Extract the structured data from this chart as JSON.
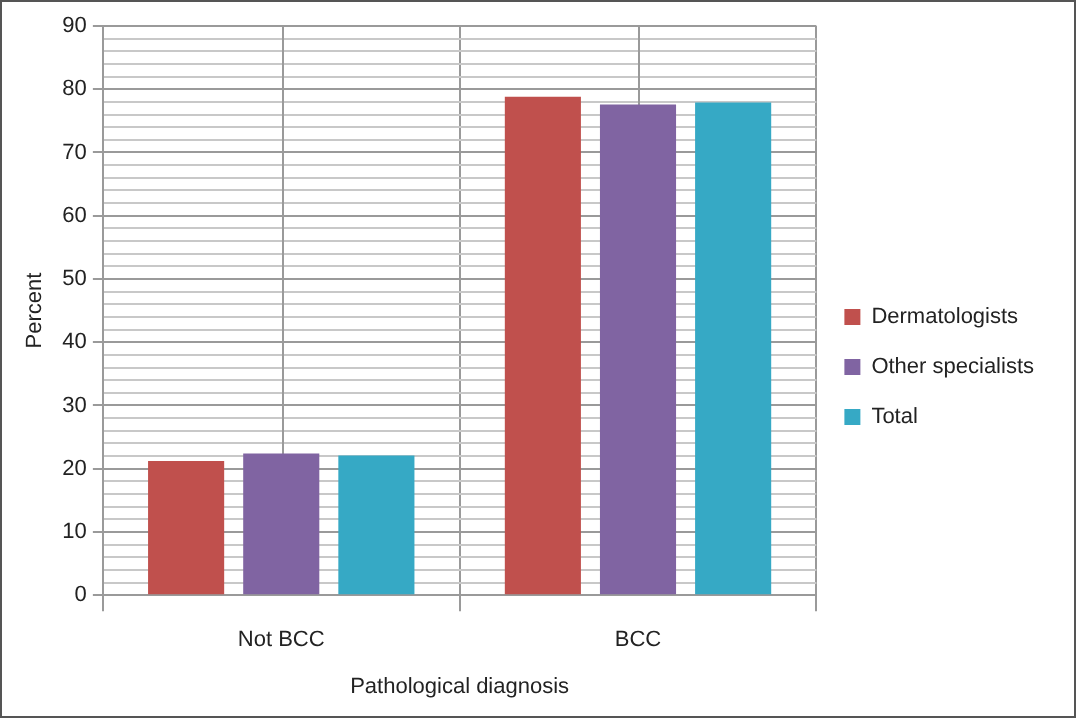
{
  "chart_data": {
    "type": "bar",
    "xlabel": "Pathological diagnosis",
    "ylabel": "Percent",
    "categories": [
      "Not BCC",
      "BCC"
    ],
    "series": [
      {
        "name": "Dermatologists",
        "color": "#c0504d",
        "values": [
          21.2,
          78.8
        ]
      },
      {
        "name": "Other specialists",
        "color": "#8064a2",
        "values": [
          22.4,
          77.6
        ]
      },
      {
        "name": "Total",
        "color": "#36a9c5",
        "values": [
          22.1,
          77.9
        ]
      }
    ],
    "ylim": [
      0,
      90
    ],
    "yticks": [
      0,
      {
        "value": 2,
        "label": null
      },
      {
        "value": 4,
        "label": null
      },
      {
        "value": 6,
        "label": null
      },
      {
        "value": 8,
        "label": null
      },
      10,
      {
        "value": 12,
        "label": null
      },
      {
        "value": 14,
        "label": null
      },
      {
        "value": 16,
        "label": null
      },
      {
        "value": 18,
        "label": null
      },
      20,
      {
        "value": 22,
        "label": null
      },
      {
        "value": 24,
        "label": null
      },
      {
        "value": 26,
        "label": null
      },
      {
        "value": 28,
        "label": null
      },
      30,
      {
        "value": 32,
        "label": null
      },
      {
        "value": 34,
        "label": null
      },
      {
        "value": 36,
        "label": null
      },
      {
        "value": 38,
        "label": null
      },
      40,
      {
        "value": 42,
        "label": null
      },
      {
        "value": 44,
        "label": null
      },
      {
        "value": 46,
        "label": null
      },
      {
        "value": 48,
        "label": null
      },
      50,
      {
        "value": 52,
        "label": null
      },
      {
        "value": 54,
        "label": null
      },
      {
        "value": 56,
        "label": null
      },
      {
        "value": 58,
        "label": null
      },
      60,
      {
        "value": 62,
        "label": null
      },
      {
        "value": 64,
        "label": null
      },
      {
        "value": 66,
        "label": null
      },
      {
        "value": 68,
        "label": null
      },
      70,
      {
        "value": 72,
        "label": null
      },
      {
        "value": 74,
        "label": null
      },
      {
        "value": 76,
        "label": null
      },
      {
        "value": 78,
        "label": null
      },
      80,
      {
        "value": 82,
        "label": null
      },
      {
        "value": 84,
        "label": null
      },
      {
        "value": 86,
        "label": null
      },
      {
        "value": 88,
        "label": null
      },
      90
    ],
    "grid": true,
    "legend": "right"
  }
}
